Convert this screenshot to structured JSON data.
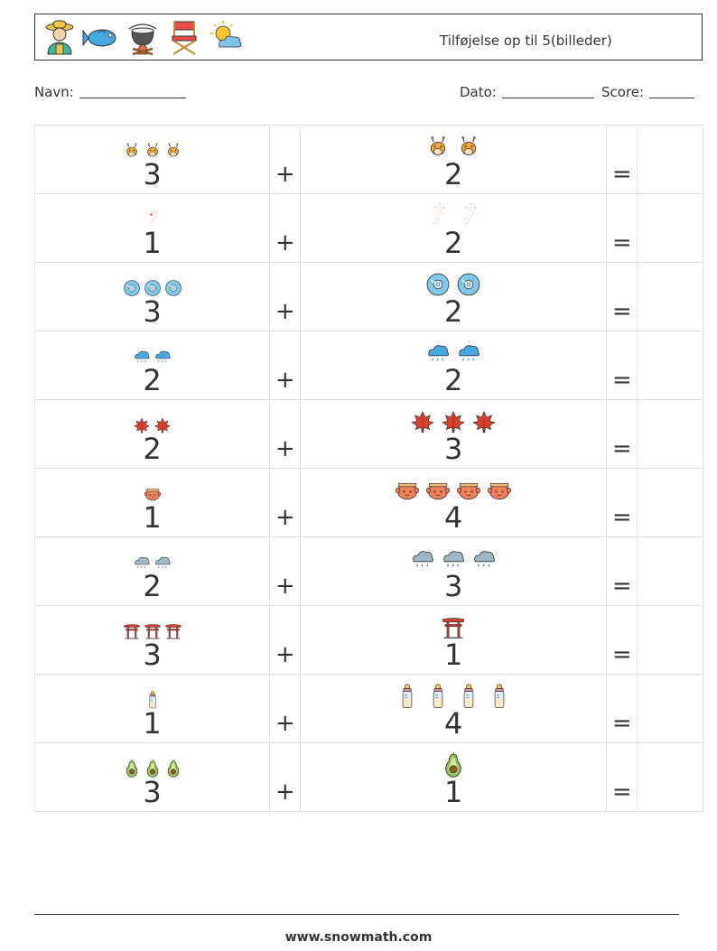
{
  "header": {
    "title": "Tilføjelse op til 5(billeder)",
    "icons": [
      "farmer-icon",
      "fish-icon",
      "campfire-pot-icon",
      "director-chair-icon",
      "sun-cloud-icon"
    ]
  },
  "info": {
    "name_label": "Navn:",
    "date_label": "Dato:",
    "score_label": "Score:"
  },
  "operators": {
    "plus": "+",
    "equals": "="
  },
  "problems": [
    {
      "a": {
        "count": 3,
        "icon": "giraffe-icon"
      },
      "b": {
        "count": 2,
        "icon": "giraffe-icon"
      }
    },
    {
      "a": {
        "count": 1,
        "icon": "candy-cane-icon"
      },
      "b": {
        "count": 2,
        "icon": "candy-cane-icon"
      }
    },
    {
      "a": {
        "count": 3,
        "icon": "disc-icon"
      },
      "b": {
        "count": 2,
        "icon": "disc-icon"
      }
    },
    {
      "a": {
        "count": 2,
        "icon": "rain-cloud-icon"
      },
      "b": {
        "count": 2,
        "icon": "rain-cloud-icon"
      }
    },
    {
      "a": {
        "count": 2,
        "icon": "maple-leaf-icon"
      },
      "b": {
        "count": 3,
        "icon": "maple-leaf-icon"
      }
    },
    {
      "a": {
        "count": 1,
        "icon": "lantern-face-icon"
      },
      "b": {
        "count": 4,
        "icon": "lantern-face-icon"
      }
    },
    {
      "a": {
        "count": 2,
        "icon": "grey-rain-cloud-icon"
      },
      "b": {
        "count": 3,
        "icon": "grey-rain-cloud-icon"
      }
    },
    {
      "a": {
        "count": 3,
        "icon": "torii-gate-icon"
      },
      "b": {
        "count": 1,
        "icon": "torii-gate-icon"
      }
    },
    {
      "a": {
        "count": 1,
        "icon": "baby-bottle-icon"
      },
      "b": {
        "count": 4,
        "icon": "baby-bottle-icon"
      }
    },
    {
      "a": {
        "count": 3,
        "icon": "avocado-icon"
      },
      "b": {
        "count": 1,
        "icon": "avocado-icon"
      }
    }
  ],
  "footer": {
    "url": "www.snowmath.com"
  }
}
